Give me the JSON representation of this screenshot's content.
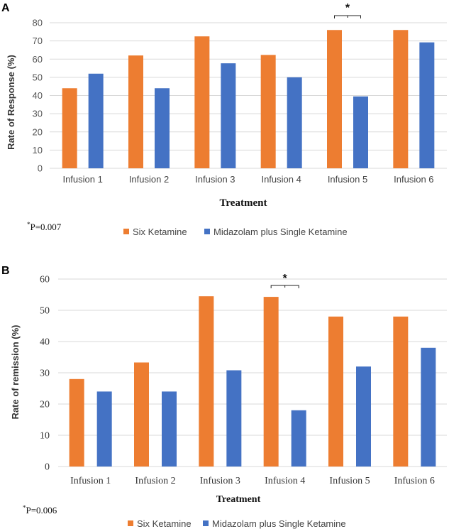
{
  "colors": {
    "series1": "#ED7D31",
    "series2": "#4472C4",
    "axis": "#D9D9D9",
    "text": "#595959"
  },
  "chart_data": [
    {
      "panel": "A",
      "type": "bar",
      "title": "",
      "xlabel": "Treatment",
      "ylabel": "Rate of Response (%)",
      "ylim": [
        0,
        80
      ],
      "yticks": [
        "0",
        "10",
        "20",
        "30",
        "40",
        "50",
        "60",
        "70",
        "80"
      ],
      "categories": [
        "Infusion 1",
        "Infusion 2",
        "Infusion 3",
        "Infusion 4",
        "Infusion 5",
        "Infusion 6"
      ],
      "series": [
        {
          "name": "Six Ketamine",
          "values": [
            44,
            62,
            72.5,
            62.3,
            76,
            76
          ]
        },
        {
          "name": "Midazolam plus Single Ketamine",
          "values": [
            52,
            44,
            57.7,
            50,
            39.5,
            69.2
          ]
        }
      ],
      "significance": {
        "category_index": 4,
        "marker": "*"
      },
      "footnote": {
        "sup": "*",
        "text": "P=0.007"
      },
      "legend_position": "bottom"
    },
    {
      "panel": "B",
      "type": "bar",
      "title": "",
      "xlabel": "Treatment",
      "ylabel": "Rate of remission (%)",
      "ylim": [
        0,
        60
      ],
      "yticks": [
        "0",
        "10",
        "20",
        "30",
        "40",
        "50",
        "60"
      ],
      "categories": [
        "Infusion 1",
        "Infusion 2",
        "Infusion 3",
        "Infusion 4",
        "Infusion 5",
        "Infusion 6"
      ],
      "series": [
        {
          "name": "Six Ketamine",
          "values": [
            28,
            33.3,
            54.5,
            54.3,
            48,
            48
          ]
        },
        {
          "name": "Midazolam plus Single Ketamine",
          "values": [
            24,
            24,
            30.8,
            18,
            32,
            38
          ]
        }
      ],
      "significance": {
        "category_index": 3,
        "marker": "*"
      },
      "footnote": {
        "sup": "*",
        "text": "P=0.006"
      },
      "legend_position": "bottom"
    }
  ]
}
